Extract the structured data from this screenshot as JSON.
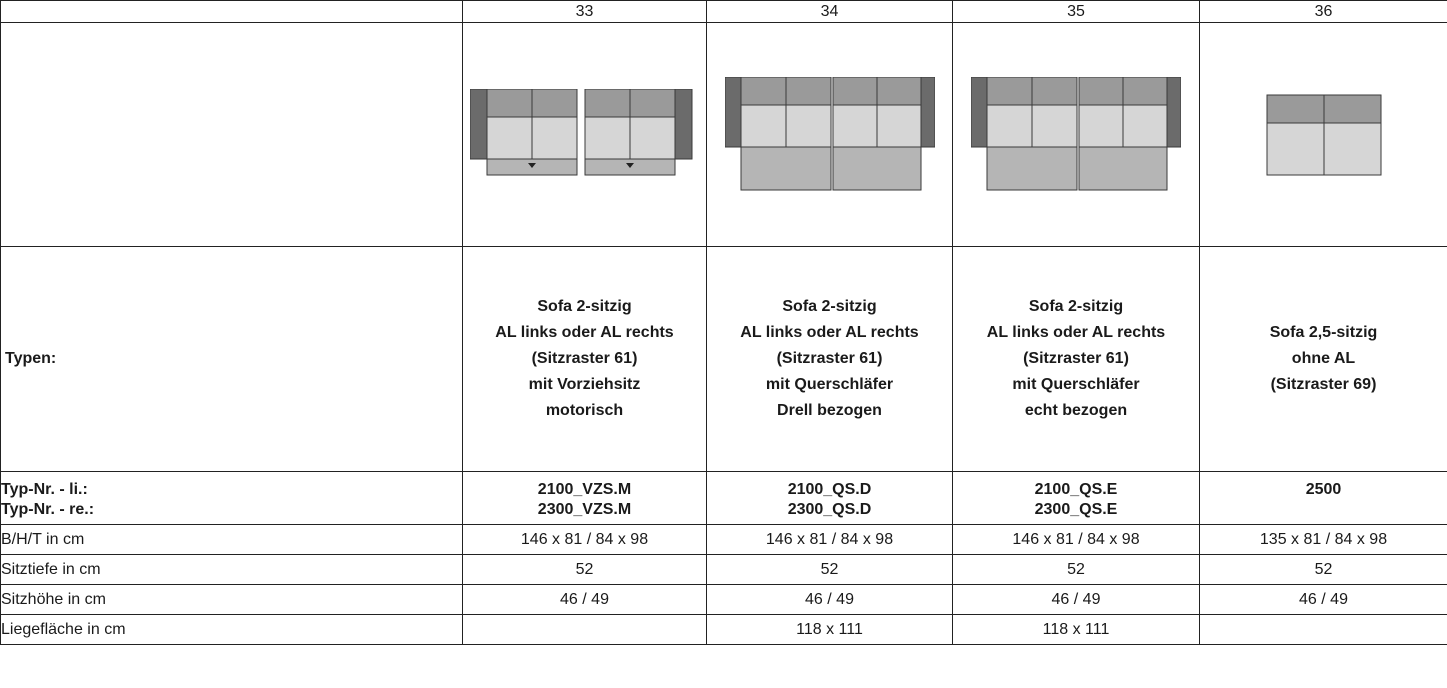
{
  "columns": [
    {
      "number": "33",
      "type_lines": [
        "Sofa 2-sitzig",
        "AL links oder AL rechts",
        "(Sitzraster 61)",
        "mit Vorziehsitz",
        "motorisch"
      ],
      "typ_nr_li": "2100_VZS.M",
      "typ_nr_re": "2300_VZS.M",
      "bht": "146 x 81 / 84 x 98",
      "sitztiefe": "52",
      "sitzhoehe": "46 / 49",
      "liegeflaeche": ""
    },
    {
      "number": "34",
      "type_lines": [
        "Sofa 2-sitzig",
        "AL links oder AL rechts",
        "(Sitzraster 61)",
        "mit Querschläfer",
        "Drell bezogen"
      ],
      "typ_nr_li": "2100_QS.D",
      "typ_nr_re": "2300_QS.D",
      "bht": "146 x 81 / 84 x 98",
      "sitztiefe": "52",
      "sitzhoehe": "46 / 49",
      "liegeflaeche": "118 x 111"
    },
    {
      "number": "35",
      "type_lines": [
        "Sofa 2-sitzig",
        "AL links oder AL rechts",
        "(Sitzraster 61)",
        "mit Querschläfer",
        "echt bezogen"
      ],
      "typ_nr_li": "2100_QS.E",
      "typ_nr_re": "2300_QS.E",
      "bht": "146 x 81 / 84 x 98",
      "sitztiefe": "52",
      "sitzhoehe": "46 / 49",
      "liegeflaeche": "118 x 111"
    },
    {
      "number": "36",
      "type_lines": [
        "Sofa 2,5-sitzig",
        "ohne AL",
        "(Sitzraster 69)"
      ],
      "typ_nr_li": "2500",
      "typ_nr_re": "",
      "bht": "135 x 81 / 84 x 98",
      "sitztiefe": "52",
      "sitzhoehe": "46 / 49",
      "liegeflaeche": ""
    }
  ],
  "labels": {
    "typen": "Typen:",
    "typ_nr_li": "Typ-Nr. - li.:",
    "typ_nr_re": "Typ-Nr. - re.:",
    "bht": "B/H/T in cm",
    "sitztiefe": "Sitztiefe in cm",
    "sitzhoehe": "Sitzhöhe in cm",
    "liegeflaeche": "Liegefläche in cm"
  },
  "colors": {
    "armrest": "#6b6b6b",
    "backrest": "#9a9a9a",
    "seat": "#d6d6d6",
    "extension": "#b5b5b5",
    "outline": "#3a3a3a"
  },
  "icons": {
    "col33": "sofa-vorziehsitz-diagram-icon",
    "col34": "sofa-querschlaefer-diagram-icon",
    "col35": "sofa-querschlaefer-diagram-icon",
    "col36": "sofa-2-5-sitzig-diagram-icon"
  }
}
